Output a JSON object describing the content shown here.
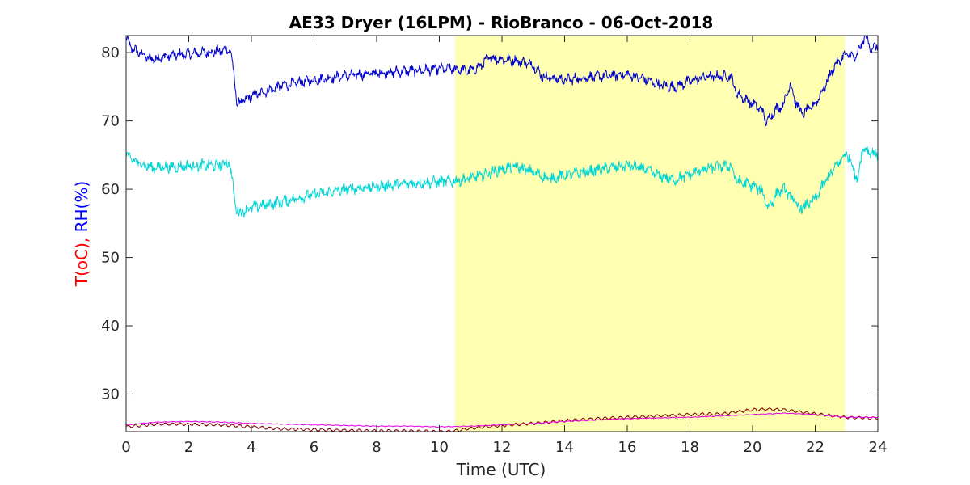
{
  "chart_data": {
    "type": "line",
    "title": "AE33 Dryer (16LPM)  - RioBranco - 06-Oct-2018",
    "xlabel": "Time (UTC)",
    "ylabel_parts": [
      {
        "text": "T(oC), ",
        "color": "#ff0000"
      },
      {
        "text": "RH(%)",
        "color": "#0000ff"
      }
    ],
    "xlim": [
      0,
      24
    ],
    "ylim": [
      24.5,
      82.5
    ],
    "xticks": [
      0,
      2,
      4,
      6,
      8,
      10,
      12,
      14,
      16,
      18,
      20,
      22,
      24
    ],
    "yticks": [
      30,
      40,
      50,
      60,
      70,
      80
    ],
    "grid": false,
    "legend": "none",
    "shaded_band": {
      "x0": 10.5,
      "x1": 22.95,
      "color": "#ffffb2"
    },
    "series": [
      {
        "color": "#0000cc",
        "noise": 0.55,
        "ripple": 0.4,
        "points": [
          [
            0,
            82
          ],
          [
            0.2,
            80.5
          ],
          [
            0.5,
            79.8
          ],
          [
            0.8,
            79
          ],
          [
            1,
            79.2
          ],
          [
            1.5,
            79.6
          ],
          [
            2,
            79.8
          ],
          [
            2.5,
            80
          ],
          [
            3,
            80.2
          ],
          [
            3.3,
            80.5
          ],
          [
            3.35,
            80
          ],
          [
            3.55,
            72.5
          ],
          [
            3.7,
            72.8
          ],
          [
            4,
            73.6
          ],
          [
            4.5,
            74.4
          ],
          [
            5,
            75.2
          ],
          [
            6,
            76
          ],
          [
            7,
            76.6
          ],
          [
            8,
            77
          ],
          [
            9,
            77.3
          ],
          [
            10,
            77.6
          ],
          [
            10.5,
            77.6
          ],
          [
            11,
            77.3
          ],
          [
            11.3,
            78
          ],
          [
            11.6,
            79.3
          ],
          [
            12,
            79
          ],
          [
            12.5,
            78.8
          ],
          [
            13,
            78.2
          ],
          [
            13.3,
            76.5
          ],
          [
            14,
            76
          ],
          [
            15,
            76.5
          ],
          [
            16,
            76.8
          ],
          [
            16.5,
            76.2
          ],
          [
            17,
            75.3
          ],
          [
            17.5,
            75
          ],
          [
            18,
            75.8
          ],
          [
            18.5,
            76.5
          ],
          [
            19,
            76.5
          ],
          [
            19.3,
            76.6
          ],
          [
            19.5,
            74
          ],
          [
            20,
            72.5
          ],
          [
            20.3,
            71.6
          ],
          [
            20.45,
            69.8
          ],
          [
            20.7,
            71.5
          ],
          [
            21,
            72.5
          ],
          [
            21.2,
            75.5
          ],
          [
            21.4,
            72.5
          ],
          [
            21.6,
            71
          ],
          [
            22,
            72.5
          ],
          [
            22.3,
            75
          ],
          [
            22.6,
            78
          ],
          [
            23,
            79.8
          ],
          [
            23.3,
            79.2
          ],
          [
            23.6,
            82.5
          ],
          [
            23.8,
            80.5
          ],
          [
            24,
            81
          ]
        ]
      },
      {
        "color": "#00d6d6",
        "noise": 0.65,
        "ripple": 0.35,
        "points": [
          [
            0,
            65
          ],
          [
            0.3,
            64
          ],
          [
            0.8,
            63.2
          ],
          [
            1.5,
            63.3
          ],
          [
            2,
            63.4
          ],
          [
            2.5,
            63.5
          ],
          [
            3,
            63.5
          ],
          [
            3.3,
            64
          ],
          [
            3.5,
            57.5
          ],
          [
            3.6,
            56.5
          ],
          [
            4,
            57.3
          ],
          [
            5,
            58.2
          ],
          [
            6,
            59.2
          ],
          [
            7,
            60
          ],
          [
            8,
            60.4
          ],
          [
            9,
            60.8
          ],
          [
            10,
            61.1
          ],
          [
            10.5,
            61.2
          ],
          [
            11,
            61.6
          ],
          [
            11.5,
            62.2
          ],
          [
            12,
            63
          ],
          [
            12.5,
            63.3
          ],
          [
            13,
            62.5
          ],
          [
            13.5,
            61.5
          ],
          [
            14,
            62
          ],
          [
            15,
            62.8
          ],
          [
            16,
            63.5
          ],
          [
            16.5,
            63
          ],
          [
            17,
            62
          ],
          [
            17.5,
            61.3
          ],
          [
            18,
            62.2
          ],
          [
            18.5,
            63
          ],
          [
            19,
            63.3
          ],
          [
            19.3,
            63.5
          ],
          [
            19.5,
            61.2
          ],
          [
            20,
            60.5
          ],
          [
            20.3,
            59.8
          ],
          [
            20.5,
            57.3
          ],
          [
            20.8,
            59.5
          ],
          [
            21,
            60
          ],
          [
            21.3,
            58.5
          ],
          [
            21.5,
            57
          ],
          [
            22,
            58.5
          ],
          [
            22.3,
            61
          ],
          [
            22.6,
            63
          ],
          [
            23,
            65.3
          ],
          [
            23.2,
            63.5
          ],
          [
            23.35,
            61
          ],
          [
            23.5,
            66
          ],
          [
            24,
            65
          ]
        ]
      },
      {
        "color": "#800000",
        "noise": 0.06,
        "ripple": 0.18,
        "points": [
          [
            0,
            25.2
          ],
          [
            1,
            25.6
          ],
          [
            2,
            25.6
          ],
          [
            3,
            25.5
          ],
          [
            4,
            25.2
          ],
          [
            5,
            24.9
          ],
          [
            6,
            24.8
          ],
          [
            7,
            24.7
          ],
          [
            8,
            24.6
          ],
          [
            9,
            24.6
          ],
          [
            10,
            24.5
          ],
          [
            10.5,
            24.6
          ],
          [
            11,
            25
          ],
          [
            12,
            25.4
          ],
          [
            13,
            25.7
          ],
          [
            14,
            26.1
          ],
          [
            15,
            26.4
          ],
          [
            16,
            26.6
          ],
          [
            17,
            26.8
          ],
          [
            18,
            27
          ],
          [
            19,
            27.1
          ],
          [
            19.5,
            27.4
          ],
          [
            20,
            27.7
          ],
          [
            20.5,
            27.8
          ],
          [
            21,
            27.7
          ],
          [
            21.5,
            27.4
          ],
          [
            22,
            27.1
          ],
          [
            23,
            26.6
          ],
          [
            24,
            26.5
          ]
        ]
      },
      {
        "color": "#e600e6",
        "noise": 0.03,
        "ripple": 0.04,
        "points": [
          [
            0,
            25.5
          ],
          [
            1,
            25.9
          ],
          [
            2,
            26
          ],
          [
            3,
            25.9
          ],
          [
            4,
            25.7
          ],
          [
            5,
            25.6
          ],
          [
            6,
            25.5
          ],
          [
            7,
            25.4
          ],
          [
            8,
            25.3
          ],
          [
            9,
            25.3
          ],
          [
            10,
            25.2
          ],
          [
            11,
            25.3
          ],
          [
            12,
            25.5
          ],
          [
            13,
            25.7
          ],
          [
            14,
            26
          ],
          [
            15,
            26.2
          ],
          [
            16,
            26.4
          ],
          [
            17,
            26.5
          ],
          [
            18,
            26.6
          ],
          [
            19,
            26.8
          ],
          [
            20,
            27
          ],
          [
            21,
            27.2
          ],
          [
            22,
            27
          ],
          [
            23,
            26.6
          ],
          [
            24,
            26.6
          ]
        ]
      }
    ]
  }
}
